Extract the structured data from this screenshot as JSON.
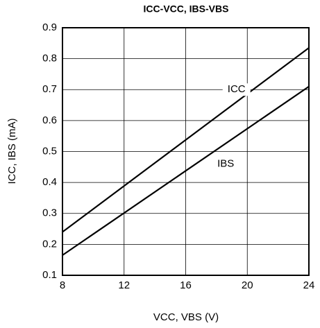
{
  "chart_data": {
    "type": "line",
    "title": "ICC-VCC, IBS-VBS",
    "x_label": "VCC, VBS (V)",
    "y_label": "ICC, IBS (mA)",
    "x": [
      8,
      24
    ],
    "series": [
      {
        "name": "ICC",
        "color": "#000000",
        "values": [
          0.24,
          0.835
        ]
      },
      {
        "name": "IBS",
        "color": "#000000",
        "values": [
          0.165,
          0.71
        ]
      }
    ],
    "xlim": [
      8,
      24
    ],
    "xticks": [
      8,
      12,
      16,
      20,
      24
    ],
    "ylim": [
      0.1,
      0.9
    ],
    "yticks": [
      0.1,
      0.2,
      0.3,
      0.4,
      0.5,
      0.6,
      0.7,
      0.8,
      0.9
    ],
    "grid": true
  }
}
